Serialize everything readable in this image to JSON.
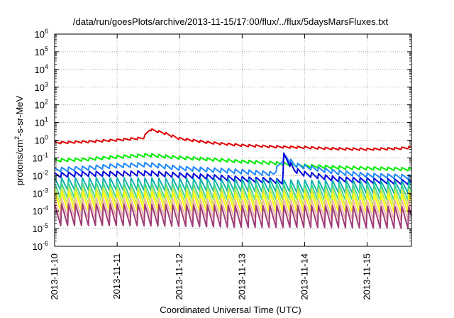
{
  "chart_data": {
    "type": "line",
    "title": "/data/run/goesPlots/archive/2013-11-15/17:00/flux/../flux/5daysMarsFluxes.txt",
    "xlabel": "Coordinated Universal Time (UTC)",
    "ylabel": {
      "base": "protons/cm",
      "sup": "2",
      "rest": "-s-sr-MeV"
    },
    "yscale": "log",
    "ylim_exp": [
      -6,
      6
    ],
    "yticks": [
      {
        "base": "10",
        "exp": "-6",
        "e": -6
      },
      {
        "base": "10",
        "exp": "-5",
        "e": -5
      },
      {
        "base": "10",
        "exp": "-4",
        "e": -4
      },
      {
        "base": "10",
        "exp": "-3",
        "e": -3
      },
      {
        "base": "10",
        "exp": "-2",
        "e": -2
      },
      {
        "base": "10",
        "exp": "-1",
        "e": -1
      },
      {
        "base": "10",
        "exp": "0",
        "e": 0
      },
      {
        "base": "10",
        "exp": "1",
        "e": 1
      },
      {
        "base": "10",
        "exp": "2",
        "e": 2
      },
      {
        "base": "10",
        "exp": "3",
        "e": 3
      },
      {
        "base": "10",
        "exp": "4",
        "e": 4
      },
      {
        "base": "10",
        "exp": "5",
        "e": 5
      },
      {
        "base": "10",
        "exp": "6",
        "e": 6
      }
    ],
    "xlim": [
      "2013-11-10",
      "2013-11-15 17:00"
    ],
    "xticks": [
      "2013-11-10",
      "2013-11-11",
      "2013-11-12",
      "2013-11-13",
      "2013-11-14",
      "2013-11-15"
    ],
    "grid": true,
    "series": [
      {
        "color": "#e00000",
        "width": 2,
        "points": [
          [
            "2013-11-10 00:00",
            0.7
          ],
          [
            "2013-11-10 12:00",
            0.8
          ],
          [
            "2013-11-11 00:00",
            1.0
          ],
          [
            "2013-11-11 10:00",
            1.3
          ],
          [
            "2013-11-11 12:30",
            4.0
          ],
          [
            "2013-11-11 18:00",
            2.5
          ],
          [
            "2013-11-12 00:00",
            1.2
          ],
          [
            "2013-11-12 12:00",
            0.7
          ],
          [
            "2013-11-13 00:00",
            0.5
          ],
          [
            "2013-11-13 12:00",
            0.42
          ],
          [
            "2013-11-14 00:00",
            0.38
          ],
          [
            "2013-11-14 12:00",
            0.32
          ],
          [
            "2013-11-15 00:00",
            0.3
          ],
          [
            "2013-11-15 12:00",
            0.33
          ],
          [
            "2013-11-15 17:00",
            0.38
          ]
        ]
      },
      {
        "color": "#00ee00",
        "width": 2,
        "points": [
          [
            "2013-11-10 00:00",
            0.07
          ],
          [
            "2013-11-10 12:00",
            0.08
          ],
          [
            "2013-11-11 00:00",
            0.11
          ],
          [
            "2013-11-11 12:00",
            0.14
          ],
          [
            "2013-11-12 00:00",
            0.1
          ],
          [
            "2013-11-12 12:00",
            0.08
          ],
          [
            "2013-11-13 00:00",
            0.06
          ],
          [
            "2013-11-13 12:00",
            0.05
          ],
          [
            "2013-11-14 00:00",
            0.035
          ],
          [
            "2013-11-14 12:00",
            0.028
          ],
          [
            "2013-11-15 00:00",
            0.025
          ],
          [
            "2013-11-15 17:00",
            0.022
          ]
        ]
      },
      {
        "color": "#1e88ff",
        "width": 2,
        "points": [
          [
            "2013-11-10 00:00",
            0.02
          ],
          [
            "2013-11-10 12:00",
            0.025
          ],
          [
            "2013-11-11 00:00",
            0.035
          ],
          [
            "2013-11-11 12:00",
            0.04
          ],
          [
            "2013-11-12 00:00",
            0.025
          ],
          [
            "2013-11-12 12:00",
            0.02
          ],
          [
            "2013-11-13 00:00",
            0.016
          ],
          [
            "2013-11-13 12:00",
            0.012
          ],
          [
            "2013-11-13 16:30",
            0.12
          ],
          [
            "2013-11-13 20:00",
            0.04
          ],
          [
            "2013-11-14 00:00",
            0.03
          ],
          [
            "2013-11-14 12:00",
            0.015
          ],
          [
            "2013-11-15 00:00",
            0.01
          ],
          [
            "2013-11-15 17:00",
            0.008
          ]
        ]
      },
      {
        "color": "#0000e0",
        "width": 2,
        "points": [
          [
            "2013-11-10 00:00",
            0.01
          ],
          [
            "2013-11-10 12:00",
            0.012
          ],
          [
            "2013-11-11 00:00",
            0.012
          ],
          [
            "2013-11-11 12:00",
            0.013
          ],
          [
            "2013-11-12 00:00",
            0.01
          ],
          [
            "2013-11-12 12:00",
            0.008
          ],
          [
            "2013-11-13 00:00",
            0.006
          ],
          [
            "2013-11-13 12:00",
            0.005
          ],
          [
            "2013-11-13 15:30",
            0.004
          ],
          [
            "2013-11-13 16:00",
            0.13
          ],
          [
            "2013-11-13 20:00",
            0.02
          ],
          [
            "2013-11-14 00:00",
            0.012
          ],
          [
            "2013-11-14 12:00",
            0.006
          ],
          [
            "2013-11-15 00:00",
            0.005
          ],
          [
            "2013-11-15 17:00",
            0.004
          ]
        ]
      },
      {
        "color": "#10b0b0",
        "width": 2,
        "points": [
          [
            "2013-11-10 00:00",
            0.003
          ],
          [
            "2013-11-11 00:00",
            0.003
          ],
          [
            "2013-11-12 00:00",
            0.0028
          ],
          [
            "2013-11-13 00:00",
            0.0025
          ],
          [
            "2013-11-14 00:00",
            0.0022
          ],
          [
            "2013-11-15 00:00",
            0.002
          ],
          [
            "2013-11-15 17:00",
            0.002
          ]
        ]
      },
      {
        "color": "#40d890",
        "width": 2,
        "points": [
          [
            "2013-11-10 00:00",
            0.0012
          ],
          [
            "2013-11-11 00:00",
            0.0012
          ],
          [
            "2013-11-12 00:00",
            0.0011
          ],
          [
            "2013-11-13 00:00",
            0.001
          ],
          [
            "2013-11-14 00:00",
            0.001
          ],
          [
            "2013-11-15 17:00",
            0.0009
          ]
        ]
      },
      {
        "color": "#c8e850",
        "width": 2,
        "points": [
          [
            "2013-11-10 00:00",
            0.0006
          ],
          [
            "2013-11-11 00:00",
            0.0006
          ],
          [
            "2013-11-12 00:00",
            0.00055
          ],
          [
            "2013-11-13 00:00",
            0.0005
          ],
          [
            "2013-11-14 00:00",
            0.0005
          ],
          [
            "2013-11-15 17:00",
            0.00045
          ]
        ]
      },
      {
        "color": "#ffff00",
        "width": 2,
        "points": [
          [
            "2013-11-10 00:00",
            0.0003
          ],
          [
            "2013-11-11 00:00",
            0.0003
          ],
          [
            "2013-11-12 00:00",
            0.00028
          ],
          [
            "2013-11-13 00:00",
            0.00025
          ],
          [
            "2013-11-14 00:00",
            0.00025
          ],
          [
            "2013-11-15 17:00",
            0.00022
          ]
        ]
      },
      {
        "color": "#e8b8b0",
        "width": 2,
        "points": [
          [
            "2013-11-10 00:00",
            0.00012
          ],
          [
            "2013-11-11 00:00",
            0.00012
          ],
          [
            "2013-11-12 00:00",
            0.00011
          ],
          [
            "2013-11-13 00:00",
            0.0001
          ],
          [
            "2013-11-14 00:00",
            0.0001
          ],
          [
            "2013-11-15 17:00",
            9e-05
          ]
        ]
      },
      {
        "color": "#a03c78",
        "width": 2,
        "points": [
          [
            "2013-11-10 00:00",
            5e-05
          ],
          [
            "2013-11-11 00:00",
            5e-05
          ],
          [
            "2013-11-12 00:00",
            4.5e-05
          ],
          [
            "2013-11-13 00:00",
            4e-05
          ],
          [
            "2013-11-14 00:00",
            4e-05
          ],
          [
            "2013-11-15 17:00",
            3.5e-05
          ]
        ]
      }
    ]
  }
}
